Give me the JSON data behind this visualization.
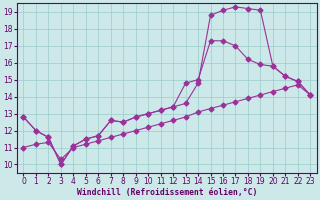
{
  "xlabel": "Windchill (Refroidissement éolien,°C)",
  "x_ticks": [
    0,
    1,
    2,
    3,
    4,
    5,
    6,
    7,
    8,
    9,
    10,
    11,
    12,
    13,
    14,
    15,
    16,
    17,
    18,
    19,
    20,
    21,
    22,
    23
  ],
  "y_ticks": [
    10,
    11,
    12,
    13,
    14,
    15,
    16,
    17,
    18,
    19
  ],
  "ylim": [
    9.5,
    19.5
  ],
  "xlim": [
    -0.5,
    23.5
  ],
  "line1_x": [
    0,
    1,
    2,
    3,
    4,
    5,
    6,
    7,
    8,
    9,
    10,
    11,
    12,
    13,
    14,
    15,
    16,
    17,
    18,
    19,
    20,
    21,
    22,
    23
  ],
  "line1_y": [
    12.8,
    12.0,
    11.6,
    10.0,
    11.1,
    11.5,
    11.7,
    12.6,
    12.5,
    12.8,
    13.0,
    13.2,
    13.4,
    13.6,
    14.8,
    18.8,
    19.1,
    19.3,
    19.2,
    19.1,
    15.8,
    15.2,
    14.9,
    14.1
  ],
  "line2_x": [
    0,
    1,
    2,
    3,
    4,
    5,
    6,
    7,
    8,
    9,
    10,
    11,
    12,
    13,
    14,
    15,
    16,
    17,
    18,
    19,
    20,
    21,
    22,
    23
  ],
  "line2_y": [
    12.8,
    12.0,
    11.6,
    10.0,
    11.1,
    11.5,
    11.7,
    12.6,
    12.5,
    12.8,
    13.0,
    13.2,
    13.4,
    14.8,
    15.0,
    17.3,
    17.3,
    17.0,
    16.2,
    15.9,
    15.8,
    15.2,
    14.9,
    14.1
  ],
  "line3_x": [
    0,
    1,
    2,
    3,
    4,
    5,
    6,
    7,
    8,
    9,
    10,
    11,
    12,
    13,
    14,
    15,
    16,
    17,
    18,
    19,
    20,
    21,
    22,
    23
  ],
  "line3_y": [
    11.0,
    11.2,
    11.3,
    10.3,
    11.0,
    11.2,
    11.4,
    11.6,
    11.8,
    12.0,
    12.2,
    12.4,
    12.6,
    12.8,
    13.1,
    13.3,
    13.5,
    13.7,
    13.9,
    14.1,
    14.3,
    14.5,
    14.7,
    14.1
  ],
  "line_color": "#993399",
  "bg_color": "#cce8e8",
  "grid_color": "#99cccc",
  "xlabel_color": "#660066",
  "tick_color": "#660066",
  "marker": "D",
  "markersize": 2.5,
  "linewidth": 0.8
}
